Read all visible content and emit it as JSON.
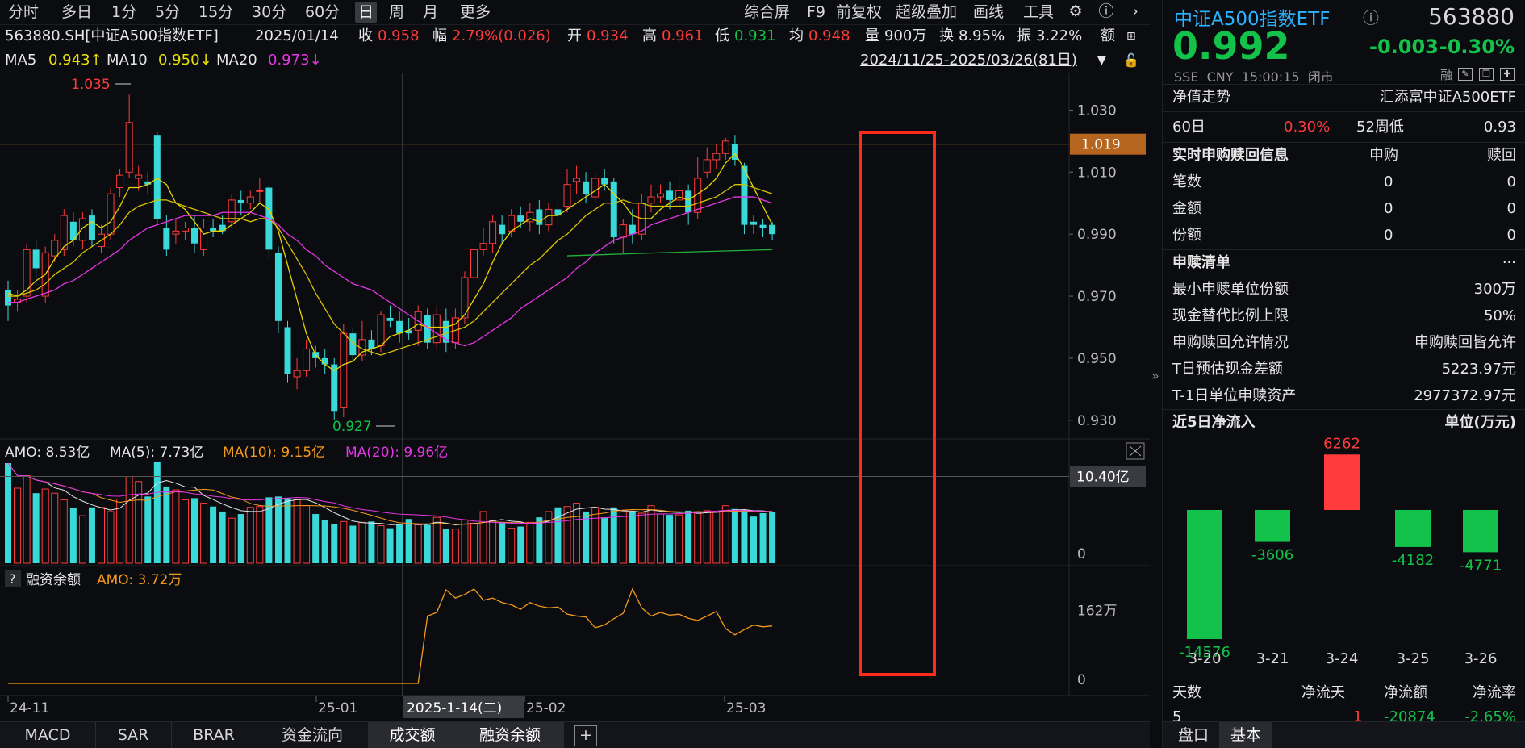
{
  "toolbar": {
    "left": [
      "分时",
      "多日",
      "1分",
      "5分",
      "15分",
      "30分",
      "60分",
      "日",
      "周",
      "月",
      "更多"
    ],
    "active": "日",
    "right": [
      "综合屏",
      "F9",
      "前复权",
      "超级叠加",
      "画线",
      "工具"
    ]
  },
  "info": {
    "code": "563880.SH[中证A500指数ETF]",
    "date": "2025/01/14",
    "close_label": "收",
    "close": "0.958",
    "chg_label": "幅",
    "chg": "2.79%(0.026)",
    "open_label": "开",
    "open": "0.934",
    "high_label": "高",
    "high": "0.961",
    "low_label": "低",
    "low": "0.931",
    "avg_label": "均",
    "avg": "0.948",
    "vol_label": "量",
    "vol": "900万",
    "turn_label": "换",
    "turn": "8.95%",
    "amp_label": "振",
    "amp": "3.22%",
    "amt_label": "额"
  },
  "ma_line": {
    "ma5_label": "MA5",
    "ma5": "0.943↑",
    "ma10_label": "MA10",
    "ma10": "0.950↓",
    "ma20_label": "MA20",
    "ma20": "0.973↓",
    "range": "2024/11/25-2025/03/26(81日)"
  },
  "chart_data": {
    "type": "candlestick",
    "price_ticks": [
      "1.030",
      "1.010",
      "0.990",
      "0.970",
      "0.950",
      "0.930"
    ],
    "price_range": [
      0.925,
      1.04
    ],
    "current_price_label": "1.019",
    "current_price": 1.019,
    "high_marker": "1.035",
    "low_marker": "0.927",
    "candles": [
      [
        0.972,
        0.967,
        0.975,
        0.962
      ],
      [
        0.968,
        0.969,
        0.972,
        0.965
      ],
      [
        0.97,
        0.985,
        0.987,
        0.968
      ],
      [
        0.985,
        0.979,
        0.988,
        0.976
      ],
      [
        0.97,
        0.984,
        0.986,
        0.968
      ],
      [
        0.983,
        0.988,
        0.99,
        0.981
      ],
      [
        0.985,
        0.996,
        0.998,
        0.983
      ],
      [
        0.994,
        0.988,
        0.997,
        0.986
      ],
      [
        0.988,
        0.995,
        0.997,
        0.985
      ],
      [
        0.996,
        0.988,
        0.998,
        0.986
      ],
      [
        0.986,
        0.99,
        0.993,
        0.984
      ],
      [
        0.99,
        1.003,
        1.005,
        0.988
      ],
      [
        1.005,
        1.009,
        1.011,
        1.002
      ],
      [
        1.01,
        1.026,
        1.035,
        1.008
      ],
      [
        1.008,
        1.009,
        1.012,
        1.004
      ],
      [
        1.007,
        1.006,
        1.01,
        1.003
      ],
      [
        1.022,
        0.995,
        1.023,
        0.993
      ],
      [
        0.992,
        0.985,
        0.996,
        0.983
      ],
      [
        0.99,
        0.991,
        0.995,
        0.987
      ],
      [
        0.991,
        0.992,
        0.994,
        0.988
      ],
      [
        0.992,
        0.987,
        0.996,
        0.984
      ],
      [
        0.985,
        0.992,
        0.995,
        0.983
      ],
      [
        0.992,
        0.991,
        0.995,
        0.989
      ],
      [
        0.993,
        0.991,
        0.996,
        0.99
      ],
      [
        0.994,
        1.001,
        1.003,
        0.992
      ],
      [
        1.001,
        1.0,
        1.004,
        0.996
      ],
      [
        1.0,
        1.002,
        1.004,
        0.998
      ],
      [
        1.004,
        1.004,
        1.008,
        1.0
      ],
      [
        1.005,
        0.985,
        1.006,
        0.982
      ],
      [
        0.984,
        0.962,
        0.986,
        0.958
      ],
      [
        0.96,
        0.945,
        0.962,
        0.942
      ],
      [
        0.944,
        0.946,
        0.95,
        0.94
      ],
      [
        0.946,
        0.953,
        0.956,
        0.944
      ],
      [
        0.952,
        0.95,
        0.954,
        0.947
      ],
      [
        0.95,
        0.948,
        0.953,
        0.945
      ],
      [
        0.948,
        0.933,
        0.95,
        0.93
      ],
      [
        0.934,
        0.958,
        0.961,
        0.931
      ],
      [
        0.958,
        0.951,
        0.96,
        0.949
      ],
      [
        0.951,
        0.956,
        0.962,
        0.949
      ],
      [
        0.956,
        0.953,
        0.959,
        0.951
      ],
      [
        0.954,
        0.964,
        0.965,
        0.952
      ],
      [
        0.963,
        0.962,
        0.967,
        0.96
      ],
      [
        0.962,
        0.958,
        0.965,
        0.955
      ],
      [
        0.959,
        0.958,
        0.963,
        0.956
      ],
      [
        0.959,
        0.965,
        0.967,
        0.954
      ],
      [
        0.964,
        0.955,
        0.966,
        0.953
      ],
      [
        0.955,
        0.964,
        0.967,
        0.953
      ],
      [
        0.962,
        0.955,
        0.966,
        0.952
      ],
      [
        0.955,
        0.963,
        0.966,
        0.953
      ],
      [
        0.963,
        0.976,
        0.978,
        0.961
      ],
      [
        0.976,
        0.985,
        0.987,
        0.974
      ],
      [
        0.985,
        0.987,
        0.992,
        0.983
      ],
      [
        0.987,
        0.994,
        0.996,
        0.984
      ],
      [
        0.993,
        0.99,
        0.996,
        0.987
      ],
      [
        0.991,
        0.996,
        0.998,
        0.989
      ],
      [
        0.996,
        0.994,
        0.999,
        0.992
      ],
      [
        0.994,
        0.997,
        1.0,
        0.991
      ],
      [
        0.998,
        0.993,
        1.001,
        0.99
      ],
      [
        0.993,
        0.998,
        1.0,
        0.991
      ],
      [
        0.998,
        0.996,
        1.001,
        0.994
      ],
      [
        0.999,
        1.006,
        1.011,
        0.997
      ],
      [
        1.007,
        1.008,
        1.012,
        1.003
      ],
      [
        1.007,
        1.003,
        1.01,
        1.0
      ],
      [
        1.002,
        1.008,
        1.01,
        1.0
      ],
      [
        1.008,
        1.006,
        1.011,
        1.004
      ],
      [
        1.007,
        0.989,
        1.008,
        0.987
      ],
      [
        0.989,
        0.993,
        0.995,
        0.984
      ],
      [
        0.993,
        0.99,
        0.998,
        0.987
      ],
      [
        0.99,
        1.0,
        1.003,
        0.988
      ],
      [
        1.0,
        1.002,
        1.006,
        0.997
      ],
      [
        1.002,
        1.003,
        1.006,
        1.0
      ],
      [
        1.004,
        1.001,
        1.007,
        0.998
      ],
      [
        1.001,
        1.004,
        1.008,
        0.999
      ],
      [
        1.004,
        0.997,
        1.006,
        0.993
      ],
      [
        0.997,
        1.008,
        1.015,
        0.995
      ],
      [
        1.01,
        1.014,
        1.018,
        1.008
      ],
      [
        1.014,
        1.016,
        1.019,
        1.011
      ],
      [
        1.016,
        1.02,
        1.021,
        1.014
      ],
      [
        1.019,
        1.014,
        1.022,
        1.012
      ],
      [
        1.012,
        0.993,
        1.013,
        0.99
      ],
      [
        0.994,
        0.993,
        0.996,
        0.99
      ],
      [
        0.993,
        0.992,
        0.995,
        0.989
      ],
      [
        0.993,
        0.99,
        0.994,
        0.988
      ]
    ],
    "ma5": [
      0.971,
      0.97,
      0.972,
      0.975,
      0.977,
      0.982,
      0.986,
      0.988,
      0.992,
      0.994,
      0.992,
      0.994,
      0.999,
      1.005,
      1.005,
      1.006,
      1.008,
      1.006,
      1.0,
      0.998,
      0.994,
      0.99,
      0.991,
      0.991,
      0.993,
      0.995,
      0.997,
      1.0,
      0.998,
      0.991,
      0.98,
      0.969,
      0.958,
      0.951,
      0.948,
      0.946,
      0.948,
      0.949,
      0.952,
      0.953,
      0.954,
      0.957,
      0.958,
      0.959,
      0.961,
      0.96,
      0.96,
      0.96,
      0.961,
      0.964,
      0.969,
      0.974,
      0.981,
      0.987,
      0.991,
      0.993,
      0.995,
      0.994,
      0.996,
      0.996,
      0.998,
      1.0,
      1.002,
      1.004,
      1.006,
      1.003,
      1.0,
      0.996,
      0.995,
      0.995,
      0.998,
      1.0,
      1.002,
      1.001,
      1.003,
      1.005,
      1.008,
      1.013,
      1.016,
      1.011,
      1.005,
      0.999,
      0.993
    ],
    "ma10": [
      0.97,
      0.97,
      0.971,
      0.972,
      0.974,
      0.977,
      0.979,
      0.981,
      0.984,
      0.986,
      0.988,
      0.99,
      0.993,
      0.997,
      0.999,
      1.0,
      1.001,
      1.001,
      1.0,
      0.999,
      0.998,
      0.997,
      0.996,
      0.995,
      0.995,
      0.995,
      0.994,
      0.995,
      0.995,
      0.992,
      0.987,
      0.982,
      0.977,
      0.971,
      0.966,
      0.961,
      0.958,
      0.955,
      0.953,
      0.952,
      0.951,
      0.952,
      0.953,
      0.954,
      0.955,
      0.956,
      0.957,
      0.958,
      0.959,
      0.96,
      0.962,
      0.965,
      0.968,
      0.971,
      0.974,
      0.977,
      0.98,
      0.982,
      0.985,
      0.988,
      0.99,
      0.993,
      0.996,
      0.998,
      1.0,
      1.0,
      1.001,
      1.0,
      1.0,
      0.999,
      0.999,
      0.999,
      0.999,
      0.999,
      1.0,
      1.001,
      1.002,
      1.004,
      1.006,
      1.006,
      1.005,
      1.004,
      1.003
    ],
    "ma20": [
      0.968,
      0.968,
      0.969,
      0.97,
      0.971,
      0.972,
      0.974,
      0.975,
      0.977,
      0.979,
      0.981,
      0.983,
      0.985,
      0.988,
      0.99,
      0.992,
      0.993,
      0.994,
      0.995,
      0.996,
      0.996,
      0.996,
      0.996,
      0.997,
      0.997,
      0.997,
      0.997,
      0.996,
      0.995,
      0.993,
      0.99,
      0.988,
      0.985,
      0.983,
      0.98,
      0.978,
      0.976,
      0.974,
      0.973,
      0.972,
      0.97,
      0.968,
      0.966,
      0.964,
      0.962,
      0.96,
      0.958,
      0.956,
      0.955,
      0.954,
      0.955,
      0.957,
      0.959,
      0.961,
      0.963,
      0.966,
      0.968,
      0.97,
      0.972,
      0.974,
      0.976,
      0.979,
      0.981,
      0.984,
      0.986,
      0.988,
      0.989,
      0.99,
      0.991,
      0.993,
      0.994,
      0.995,
      0.996,
      0.997,
      0.998,
      0.999,
      1.0,
      1.001,
      1.002,
      1.002,
      1.002,
      1.001,
      1.0
    ],
    "x_labels": [
      "24-11",
      "25-01",
      "2025-1-14(二)",
      "25-02",
      "25-03"
    ],
    "volume": {
      "legend": {
        "amo": "AMO: 8.53亿",
        "ma5": "MA(5): 7.73亿",
        "ma10": "MA(10): 9.15亿",
        "ma20": "MA(20): 9.96亿"
      },
      "tick": "10.40亿",
      "tick_value": 10.4,
      "zero": "0",
      "max": 12.0,
      "values": [
        12.0,
        9.0,
        10.5,
        8.4,
        8.9,
        8.4,
        7.6,
        6.6,
        5.7,
        6.7,
        6.7,
        6.2,
        7.7,
        10.4,
        9.8,
        8.0,
        12.2,
        9.2,
        8.8,
        7.6,
        7.8,
        7.2,
        6.8,
        6.2,
        5.4,
        5.9,
        6.7,
        6.8,
        7.9,
        8.0,
        7.8,
        7.6,
        6.9,
        5.9,
        5.2,
        4.7,
        5.0,
        4.5,
        4.9,
        5.0,
        4.5,
        4.2,
        4.6,
        5.3,
        4.6,
        4.6,
        5.5,
        4.1,
        4.1,
        5.2,
        4.8,
        6.2,
        5.1,
        4.9,
        4.2,
        4.4,
        4.9,
        5.5,
        6.2,
        6.7,
        6.8,
        7.2,
        6.2,
        6.7,
        5.5,
        6.7,
        6.3,
        6.1,
        6.0,
        6.9,
        5.9,
        5.8,
        5.8,
        6.3,
        6.1,
        6.3,
        6.1,
        6.9,
        6.5,
        6.4,
        5.6,
        6.0,
        6.1
      ]
    },
    "margin": {
      "legend_q": "?",
      "legend_title": "融资余额",
      "legend_amo": "AMO: 3.72万",
      "tick": "162万",
      "zero": "0"
    },
    "margin_values": [
      0,
      0,
      0,
      0,
      0,
      0,
      0,
      0,
      0,
      0,
      0,
      0,
      0,
      0,
      0,
      0,
      0,
      0,
      0,
      0,
      0,
      0,
      0,
      0,
      0,
      0,
      0,
      0,
      0,
      0,
      0,
      0,
      0,
      0,
      0,
      0,
      0,
      0,
      0,
      0,
      0,
      0,
      0,
      0,
      0,
      0,
      140,
      140,
      124,
      140,
      141,
      140,
      139,
      154
    ],
    "margin_scale_max": 162,
    "margin_recent": [
      150,
      158,
      208,
      190,
      198,
      210,
      185,
      190,
      180,
      175,
      165,
      180,
      172,
      168,
      170,
      154,
      150,
      148,
      124,
      130,
      144,
      156,
      210,
      168,
      150,
      158,
      152,
      154,
      145,
      140,
      150,
      160,
      122,
      108,
      120,
      130,
      126,
      128
    ]
  },
  "stock": {
    "name": "中证A500指数ETF",
    "code": "563880",
    "price": "0.992",
    "change": "-0.003",
    "pct": "-0.30%",
    "meta": "SSE  CNY  15:00:15  闭市",
    "tools": "融"
  },
  "nav": {
    "label": "净值走势",
    "fund": "汇添富中证A500ETF"
  },
  "period_row": {
    "c1": "60日",
    "c2": "0.30%",
    "c3": "52周低",
    "c4": "0.93"
  },
  "realtime": {
    "title": "实时申购赎回信息",
    "col1": "申购",
    "col2": "赎回",
    "rows": [
      {
        "label": "笔数",
        "a": "0",
        "b": "0"
      },
      {
        "label": "金额",
        "a": "0",
        "b": "0"
      },
      {
        "label": "份额",
        "a": "0",
        "b": "0"
      }
    ]
  },
  "list": {
    "title": "申赎清单",
    "more": "···",
    "rows": [
      {
        "label": "最小申赎单位份额",
        "value": "300万"
      },
      {
        "label": "现金替代比例上限",
        "value": "50%"
      },
      {
        "label": "申购赎回允许情况",
        "value": "申购赎回皆允许"
      },
      {
        "label": "T日预估现金差额",
        "value": "5223.97元"
      },
      {
        "label": "T-1日单位申赎资产",
        "value": "2977372.97元"
      }
    ]
  },
  "inflow": {
    "title": "近5日净流入",
    "unit": "单位(万元)",
    "bars": [
      {
        "date": "3-20",
        "value": -14576,
        "label": "-14576"
      },
      {
        "date": "3-21",
        "value": -3606,
        "label": "-3606"
      },
      {
        "date": "3-24",
        "value": 6262,
        "label": "6262"
      },
      {
        "date": "3-25",
        "value": -4182,
        "label": "-4182"
      },
      {
        "date": "3-26",
        "value": -4771,
        "label": "-4771"
      }
    ],
    "colors": {
      "up": "#ff3b3b",
      "down": "#12c24a"
    }
  },
  "stats": {
    "headers": [
      "天数",
      "净流天",
      "净流额",
      "净流率"
    ],
    "row": [
      "5",
      "1",
      "-20874",
      "-2.65%"
    ]
  },
  "bottom_tabs": [
    "MACD",
    "SAR",
    "BRAR",
    "资金流向",
    "成交额",
    "融资余额"
  ],
  "bottom_selected": [
    "成交额",
    "融资余额"
  ],
  "right_tabs": [
    "盘口",
    "基本"
  ],
  "right_tab_selected": "基本",
  "colors": {
    "up": "#ff3b3b",
    "down": "#3ad9d9",
    "ma5": "#e8d400",
    "ma10": "#e8d400",
    "ma20": "#e636e6",
    "highlight": "#ff2a1a"
  }
}
